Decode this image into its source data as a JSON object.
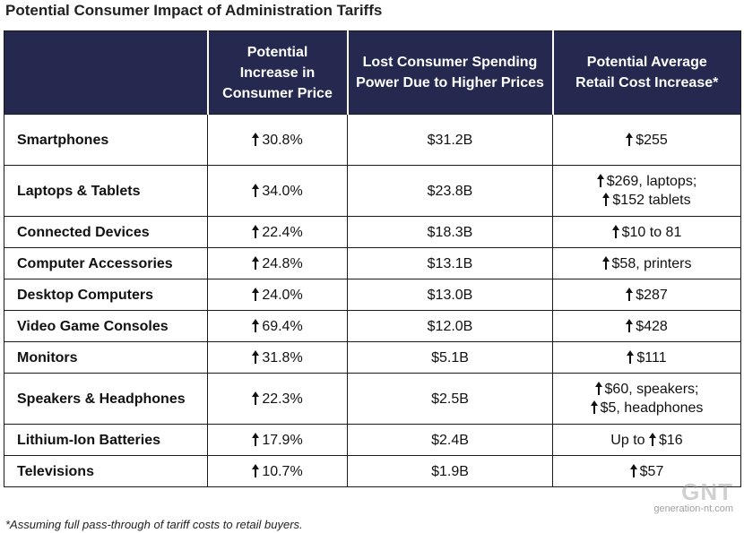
{
  "title": "Potential Consumer Impact of Administration Tariffs",
  "headers": {
    "col2": [
      "Potential",
      "Increase in",
      "Consumer Price"
    ],
    "col3": [
      "Lost Consumer Spending",
      "Power Due to Higher Prices"
    ],
    "col4": [
      "Potential Average",
      "Retail Cost Increase*"
    ]
  },
  "rows": [
    {
      "category": "Smartphones",
      "price_increase": "30.8%",
      "lost_spending": "$31.2B",
      "retail_lines": [
        {
          "prefix": "",
          "text": "$255"
        }
      ]
    },
    {
      "category": "Laptops & Tablets",
      "price_increase": "34.0%",
      "lost_spending": "$23.8B",
      "retail_lines": [
        {
          "prefix": "",
          "text": "$269, laptops;"
        },
        {
          "prefix": "",
          "text": "$152 tablets"
        }
      ]
    },
    {
      "category": "Connected Devices",
      "price_increase": "22.4%",
      "lost_spending": "$18.3B",
      "retail_lines": [
        {
          "prefix": "",
          "text": "$10 to 81"
        }
      ]
    },
    {
      "category": "Computer Accessories",
      "price_increase": "24.8%",
      "lost_spending": "$13.1B",
      "retail_lines": [
        {
          "prefix": "",
          "text": "$58, printers"
        }
      ]
    },
    {
      "category": "Desktop Computers",
      "price_increase": "24.0%",
      "lost_spending": "$13.0B",
      "retail_lines": [
        {
          "prefix": "",
          "text": "$287"
        }
      ]
    },
    {
      "category": "Video Game Consoles",
      "price_increase": "69.4%",
      "lost_spending": "$12.0B",
      "retail_lines": [
        {
          "prefix": "",
          "text": "$428"
        }
      ]
    },
    {
      "category": "Monitors",
      "price_increase": "31.8%",
      "lost_spending": "$5.1B",
      "retail_lines": [
        {
          "prefix": "",
          "text": "$111"
        }
      ]
    },
    {
      "category": "Speakers & Headphones",
      "price_increase": "22.3%",
      "lost_spending": "$2.5B",
      "retail_lines": [
        {
          "prefix": "",
          "text": "$60, speakers;"
        },
        {
          "prefix": "",
          "text": "$5, headphones"
        }
      ]
    },
    {
      "category": "Lithium-Ion Batteries",
      "price_increase": "17.9%",
      "lost_spending": "$2.4B",
      "retail_lines": [
        {
          "prefix": "Up to ",
          "text": "$16"
        }
      ]
    },
    {
      "category": "Televisions",
      "price_increase": "10.7%",
      "lost_spending": "$1.9B",
      "retail_lines": [
        {
          "prefix": "",
          "text": "$57"
        }
      ]
    }
  ],
  "footnote": "*Assuming full pass-through of tariff costs to retail buyers.",
  "watermark": {
    "logo": "GNT",
    "site": "generation-nt.com"
  },
  "icons": {
    "increase": "up-arrow-icon"
  },
  "colors": {
    "header_bg": "#25294f",
    "header_text": "#ffffff"
  }
}
